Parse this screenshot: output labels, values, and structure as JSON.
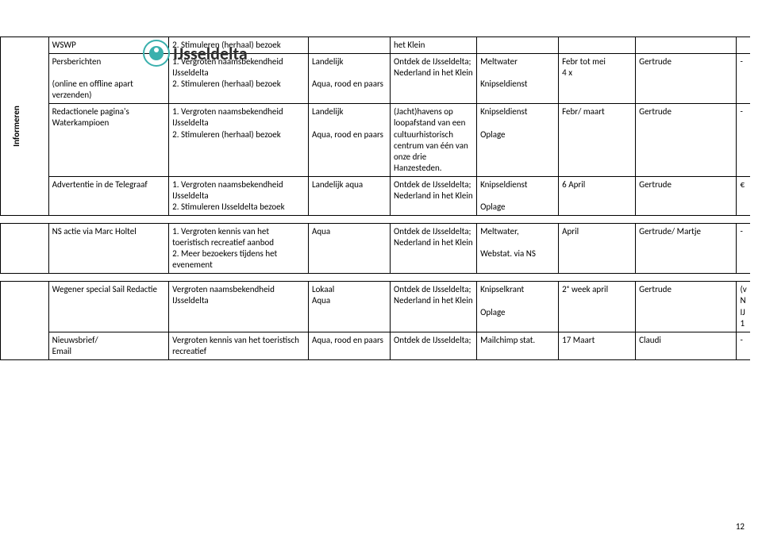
{
  "logo_text": "IJsseldelta",
  "page_number": "12",
  "vlabel": "Informeren",
  "rows": {
    "r1": {
      "c1": "WSWP",
      "c2": "2. Stimuleren (herhaal) bezoek",
      "c3": "",
      "c4": "het Klein",
      "c5": "",
      "c6": "",
      "c7": "",
      "c8": ""
    },
    "r2": {
      "c1": "Persberichten\n\n(online en offline apart verzenden)",
      "c2": "1. Vergroten naamsbekendheid IJsseldelta\n2. Stimuleren (herhaal) bezoek",
      "c3": "Landelijk\n\nAqua, rood en paars",
      "c4": "Ontdek de IJsseldelta; Nederland in het Klein",
      "c5": "Meltwater\n\nKnipseldienst",
      "c6": "Febr tot mei\n4 x",
      "c7": "Gertrude",
      "c8": "-"
    },
    "r3": {
      "c1": "Redactionele pagina's Waterkampioen",
      "c2": "1. Vergroten naamsbekendheid IJsseldelta\n2. Stimuleren (herhaal) bezoek",
      "c3": "Landelijk\n\nAqua, rood en paars",
      "c4": "(Jacht)havens op loopafstand van een cultuurhistorisch centrum van één van onze drie Hanzesteden.",
      "c5": "Knipseldienst\n\nOplage",
      "c6": "Febr/ maart",
      "c7": "Gertrude",
      "c8": "-"
    },
    "r4": {
      "c1": "Advertentie in de Telegraaf",
      "c2": "1. Vergroten naamsbekendheid IJsseldelta\n2. Stimuleren IJsseldelta bezoek",
      "c3": "Landelijk aqua",
      "c4": "Ontdek de IJsseldelta; Nederland in het Klein",
      "c5": "Knipseldienst\n\nOplage",
      "c6": "6 April",
      "c7": "Gertrude",
      "c8": "€"
    },
    "r5": {
      "c1": "NS actie via Marc Holtel",
      "c2": "1. Vergroten  kennis van het toeristisch recreatief aanbod\n2. Meer bezoekers tijdens het evenement",
      "c3": "Aqua",
      "c4": "Ontdek de IJsseldelta; Nederland in het Klein",
      "c5": "Meltwater,\n\nWebstat. via NS",
      "c6": "April",
      "c7": "Gertrude/ Martje",
      "c8": "-"
    },
    "r6": {
      "c1": "Wegener special Sail Redactie",
      "c2": "Vergroten naamsbekendheid IJsseldelta",
      "c3": "Lokaal\nAqua",
      "c4": "Ontdek de IJsseldelta; Nederland in het Klein",
      "c5": "Knipselkrant\n\nOplage",
      "c6": "2ᵉ week april",
      "c7": "Gertrude",
      "c8": "(v\nN\nIJ\n1"
    },
    "r7": {
      "c1": "Nieuwsbrief/\nEmail",
      "c2": "Vergroten  kennis van het toeristisch recreatief",
      "c3": "Aqua, rood en paars",
      "c4": "Ontdek de IJsseldelta;",
      "c5": "Mailchimp stat.",
      "c6": "17 Maart",
      "c7": "Claudi",
      "c8": "-"
    }
  }
}
